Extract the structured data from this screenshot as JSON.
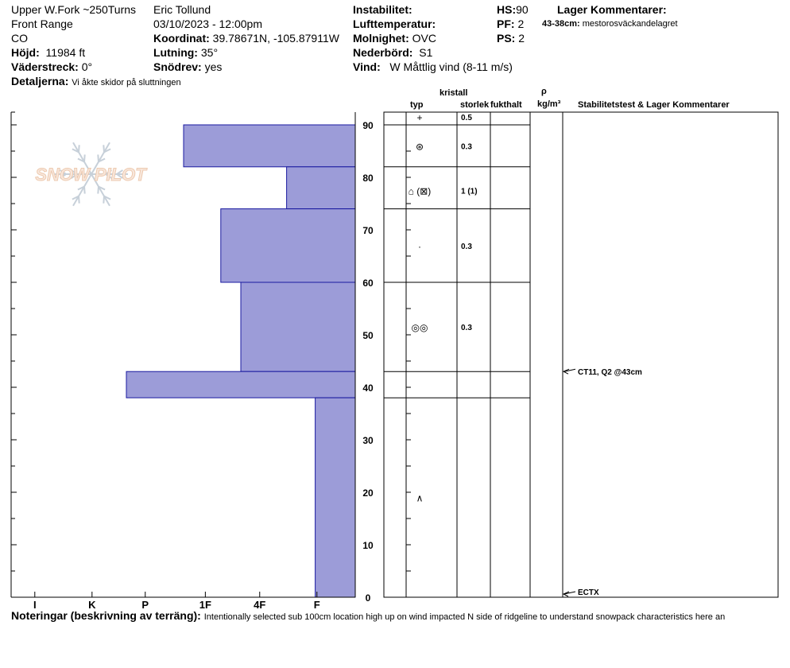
{
  "header": {
    "location": "Upper W.Fork ~250Turns",
    "range": "Front Range",
    "state": "CO",
    "elevation_label": "Höjd:",
    "elevation": "11984 ft",
    "aspect_label": "Väderstreck:",
    "aspect": "0°",
    "details_label": "Detaljerna:",
    "details": "Vi åkte skidor på sluttningen",
    "observer": "Eric Tollund",
    "datetime": "03/10/2023 - 12:00pm",
    "coord_label": "Koordinat:",
    "coord": "39.78671N, -105.87911W",
    "slope_label": "Lutning:",
    "slope": "35°",
    "drift_label": "Snödrev:",
    "drift": "yes",
    "instability_label": "Instabilitet:",
    "airtemp_label": "Lufttemperatur:",
    "sky_label": "Molnighet:",
    "sky": "OVC",
    "precip_label": "Nederbörd:",
    "precip": "S1",
    "wind_label": "Vind:",
    "wind": "W Måttlig vind (8-11 m/s)",
    "hs_label": "HS:",
    "hs": "90",
    "pf_label": "PF:",
    "pf": "2",
    "ps_label": "PS:",
    "ps": "2",
    "layer_comments_label": "Lager Kommentarer:",
    "layer_comment_depth": "43-38cm:",
    "layer_comment_text": "mestorosväckandelagret"
  },
  "watermark": "SNOW PILOT",
  "columns": {
    "crystal": "kristall",
    "type": "typ",
    "size": "storlek",
    "moisture": "fukthalt",
    "rho": "ρ",
    "density_unit": "kg/m³",
    "stability": "Stabilitetstest & Lager Kommentarer"
  },
  "notes_label": "Noteringar (beskrivning av terräng):",
  "notes": "Intentionally selected sub 100cm location high up on wind impacted N side of ridgeline to understand snowpack characteristics here an",
  "stability_tests": [
    {
      "label": "CT11, Q2 @43cm",
      "depth": 43
    },
    {
      "label": "ECTX",
      "depth": 0
    }
  ],
  "colors": {
    "bar_fill": "#9c9cd8",
    "bar_stroke": "#1a1aa0"
  },
  "chart_data": {
    "type": "bar",
    "orientation": "horizontal",
    "title": "",
    "xlabel": "",
    "ylabel": "",
    "x_categories": [
      "I",
      "K",
      "P",
      "1F",
      "4F",
      "F"
    ],
    "y_ticks": [
      0,
      10,
      20,
      30,
      40,
      50,
      60,
      70,
      80,
      90
    ],
    "ylim": [
      0,
      90
    ],
    "grid": false,
    "layers": [
      {
        "top": 90,
        "bottom": 82,
        "hardness": "P",
        "crystal_type": "+",
        "size": "0.5",
        "size_ref_height": 91.5
      },
      {
        "top": 82,
        "bottom": 74,
        "hardness": "4F",
        "crystal_type": "⊛",
        "size": "0.3",
        "size_ref_height": 86
      },
      {
        "top": 74,
        "bottom": 60,
        "hardness": "1F-",
        "crystal_type": "⌂ (⊠)",
        "size": "1 (1)",
        "size_ref_height": 77.5
      },
      {
        "top": 60,
        "bottom": 43,
        "hardness": "1F+",
        "crystal_type": "·",
        "size": "0.3",
        "size_ref_height": 67
      },
      {
        "top": 43,
        "bottom": 38,
        "hardness": "K",
        "crystal_type": "◎◎",
        "size": "0.3",
        "size_ref_height": 51.5
      },
      {
        "top": 38,
        "bottom": 0,
        "hardness": "F",
        "crystal_type": "∧",
        "size": "",
        "size_ref_height": 19
      }
    ],
    "hardness_values": {
      "P": 3,
      "4F": 1.2,
      "1F-": 2.35,
      "1F+": 2.0,
      "K": 4.0,
      "F": 0.7
    }
  }
}
